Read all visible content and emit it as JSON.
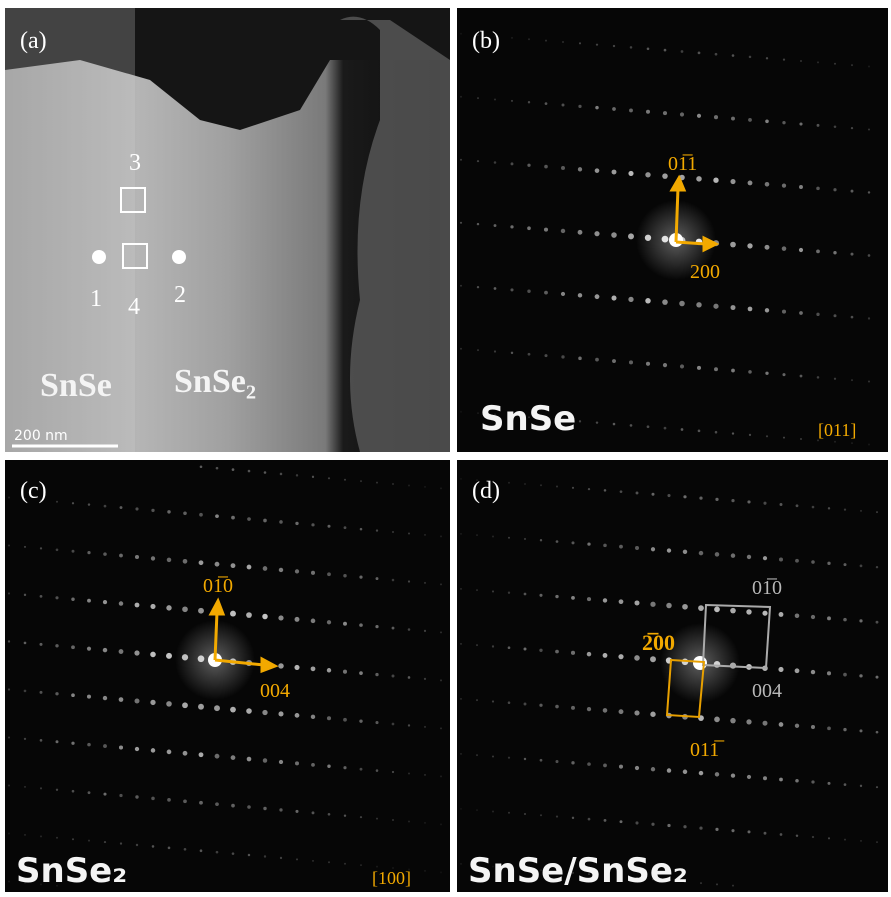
{
  "panel_a": {
    "label": "(a)",
    "marker_3": "3",
    "marker_1": "1",
    "marker_4": "4",
    "marker_2": "2",
    "phase_left": "SnSe",
    "phase_right": "SnSe₂",
    "scale_bar": "200 nm"
  },
  "panel_b": {
    "label": "(b)",
    "vector_1": "01̅1",
    "vector_2": "200",
    "phase": "SnSe",
    "zone_axis": "[011]"
  },
  "panel_c": {
    "label": "(c)",
    "vector_1": "01̅0",
    "vector_2": "004",
    "phase": "SnSe₂",
    "zone_axis": "[100]"
  },
  "panel_d": {
    "label": "(d)",
    "gray_1": "01̅0",
    "gray_2": "004",
    "orange_1": "2̅00",
    "orange_2": "011̅",
    "phase": "SnSe/SnSe₂"
  }
}
